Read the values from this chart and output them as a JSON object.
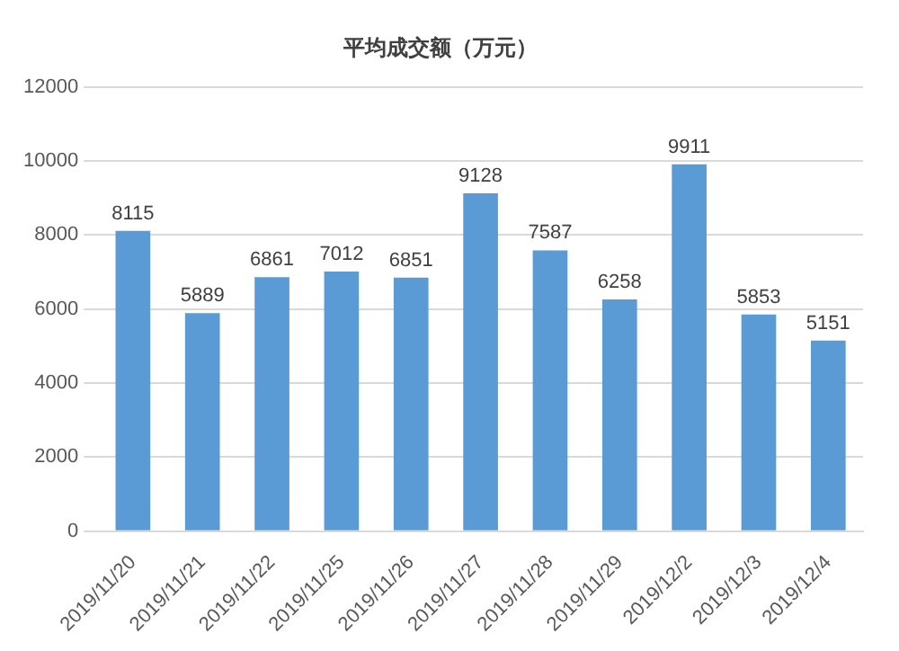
{
  "chart_data": {
    "type": "bar",
    "title": "平均成交额（万元）",
    "categories": [
      "2019/11/20",
      "2019/11/21",
      "2019/11/22",
      "2019/11/25",
      "2019/11/26",
      "2019/11/27",
      "2019/11/28",
      "2019/11/29",
      "2019/12/2",
      "2019/12/3",
      "2019/12/4"
    ],
    "values": [
      8115,
      5889,
      6861,
      7012,
      6851,
      9128,
      7587,
      6258,
      9911,
      5853,
      5151
    ],
    "color": "#5b9bd5",
    "ylim": [
      0,
      12000
    ],
    "yticks": [
      0,
      2000,
      4000,
      6000,
      8000,
      10000,
      12000
    ],
    "grid": "y",
    "data_labels": true
  }
}
